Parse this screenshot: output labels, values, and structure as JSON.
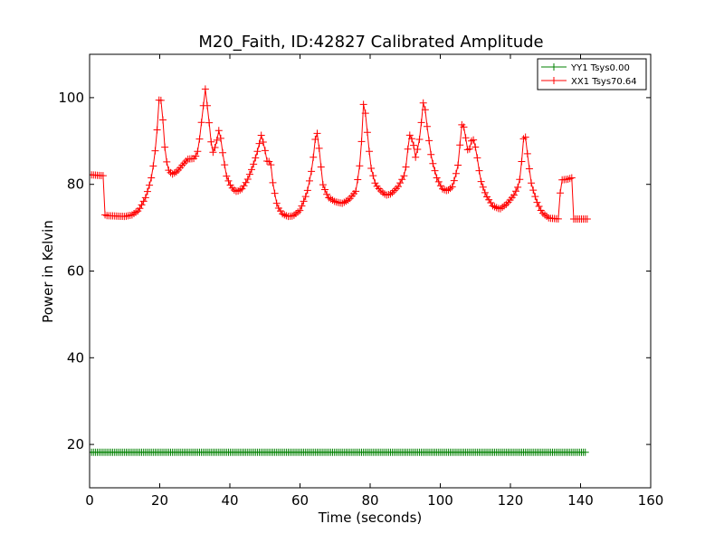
{
  "chart_data": {
    "type": "line",
    "title": "M20_Faith, ID:42827 Calibrated Amplitude",
    "xlabel": "Time (seconds)",
    "ylabel": "Power in Kelvin",
    "xlim": [
      0,
      160
    ],
    "ylim": [
      10,
      110
    ],
    "xticks": [
      0,
      20,
      40,
      60,
      80,
      100,
      120,
      140,
      160
    ],
    "yticks": [
      20,
      40,
      60,
      80,
      100
    ],
    "grid": false,
    "legend_position": "top-right",
    "series": [
      {
        "name": "YY1 Tsys0.00",
        "color": "#008000",
        "marker": "plus",
        "x_start": 0,
        "x_end": 141.5,
        "x_step": 0.55,
        "y_constant": 18.2
      },
      {
        "name": "XX1 Tsys70.64",
        "color": "#ff0000",
        "marker": "plus",
        "x_step": 0.55,
        "keypoints": [
          [
            0,
            82.2
          ],
          [
            4.0,
            82.0
          ],
          [
            4.2,
            73.3
          ],
          [
            4.5,
            72.8
          ],
          [
            10,
            72.6
          ],
          [
            12,
            72.9
          ],
          [
            14,
            74.0
          ],
          [
            16,
            77.0
          ],
          [
            17.5,
            81.0
          ],
          [
            18.5,
            86.0
          ],
          [
            19.3,
            93.0
          ],
          [
            20.0,
            102.0
          ],
          [
            20.8,
            96.0
          ],
          [
            21.5,
            88.0
          ],
          [
            22.3,
            83.5
          ],
          [
            23.5,
            82.3
          ],
          [
            25,
            83.0
          ],
          [
            26.5,
            84.5
          ],
          [
            28,
            85.8
          ],
          [
            30,
            86.0
          ],
          [
            31,
            88.0
          ],
          [
            32,
            95.0
          ],
          [
            33.0,
            102.0
          ],
          [
            34,
            95.0
          ],
          [
            35,
            87.0
          ],
          [
            36,
            89.0
          ],
          [
            37,
            93.0
          ],
          [
            38,
            87.0
          ],
          [
            39,
            82.0
          ],
          [
            40,
            80.0
          ],
          [
            41,
            78.8
          ],
          [
            42,
            78.3
          ],
          [
            43.5,
            79.0
          ],
          [
            45,
            81.0
          ],
          [
            46.5,
            84.0
          ],
          [
            48,
            88.0
          ],
          [
            49.0,
            91.5
          ],
          [
            50,
            88.0
          ],
          [
            50.8,
            84.5
          ],
          [
            51.5,
            86.0
          ],
          [
            52.3,
            80.0
          ],
          [
            53.5,
            75.0
          ],
          [
            55,
            73.2
          ],
          [
            56.5,
            72.6
          ],
          [
            58,
            72.7
          ],
          [
            60,
            74.0
          ],
          [
            62,
            78.0
          ],
          [
            63.5,
            84.0
          ],
          [
            64.7,
            93.0
          ],
          [
            65.5,
            88.0
          ],
          [
            66.5,
            80.0
          ],
          [
            68,
            77.0
          ],
          [
            70,
            76.0
          ],
          [
            72,
            75.6
          ],
          [
            74,
            76.5
          ],
          [
            76,
            78.5
          ],
          [
            77.3,
            86.0
          ],
          [
            78.2,
            100.0
          ],
          [
            79.2,
            92.0
          ],
          [
            80.2,
            84.0
          ],
          [
            81.5,
            80.0
          ],
          [
            83,
            78.5
          ],
          [
            84.5,
            77.5
          ],
          [
            86,
            77.8
          ],
          [
            88,
            79.5
          ],
          [
            90,
            82.5
          ],
          [
            91.2,
            91.5
          ],
          [
            92.2,
            90.0
          ],
          [
            93.0,
            86.0
          ],
          [
            94.2,
            91.0
          ],
          [
            95.3,
            100.0
          ],
          [
            96.3,
            93.0
          ],
          [
            97.5,
            86.0
          ],
          [
            99,
            81.5
          ],
          [
            100.5,
            79.0
          ],
          [
            102,
            78.5
          ],
          [
            103.5,
            79.5
          ],
          [
            105,
            84.0
          ],
          [
            106.3,
            95.0
          ],
          [
            107.2,
            91.0
          ],
          [
            108.0,
            87.0
          ],
          [
            109.2,
            91.0
          ],
          [
            110.2,
            88.0
          ],
          [
            111.5,
            81.0
          ],
          [
            113,
            77.5
          ],
          [
            115,
            75.0
          ],
          [
            117,
            74.3
          ],
          [
            119,
            75.5
          ],
          [
            121,
            77.5
          ],
          [
            122.5,
            80.0
          ],
          [
            123.3,
            86.0
          ],
          [
            124.0,
            93.0
          ],
          [
            125,
            86.0
          ],
          [
            126,
            80.0
          ],
          [
            127.5,
            76.0
          ],
          [
            129,
            73.5
          ],
          [
            131,
            72.2
          ],
          [
            134,
            72.0
          ],
          [
            134.3,
            81.0
          ],
          [
            136.5,
            81.2
          ],
          [
            137.5,
            81.5
          ],
          [
            137.7,
            72.0
          ],
          [
            142,
            72.0
          ]
        ]
      }
    ]
  }
}
